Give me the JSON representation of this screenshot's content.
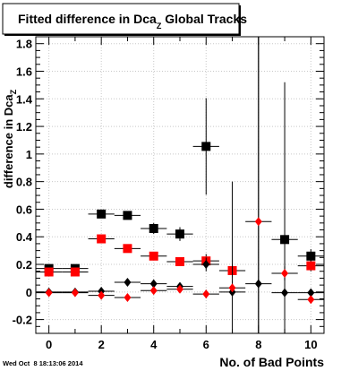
{
  "chart_data": {
    "type": "scatter",
    "title": "Fitted difference in Dca",
    "title_subscript": "Z",
    "title_suffix": " Global Tracks",
    "xlabel": "No. of Bad Points",
    "ylabel": "difference in Dca",
    "ylabel_subscript": "Z",
    "xlim": [
      -0.5,
      10.5
    ],
    "ylim": [
      -0.3,
      1.85
    ],
    "xticks": [
      0,
      2,
      4,
      6,
      8,
      10
    ],
    "yticks": [
      -0.2,
      0,
      0.2,
      0.4,
      0.6,
      0.8,
      1,
      1.2,
      1.4,
      1.6,
      1.8
    ],
    "ytick_labels": [
      "-0.2",
      "0",
      "0.2",
      "0.4",
      "0.6",
      "0.8",
      "1",
      "1.2",
      "1.4",
      "1.6",
      "1.8"
    ],
    "grid": true,
    "series": [
      {
        "marker": "square",
        "color": "#000000",
        "points": [
          {
            "x": 0,
            "y": 0.17,
            "ey": 0.02
          },
          {
            "x": 1,
            "y": 0.17,
            "ey": 0.02
          },
          {
            "x": 2,
            "y": 0.565,
            "ey": 0.03
          },
          {
            "x": 3,
            "y": 0.555,
            "ey": 0.03
          },
          {
            "x": 4,
            "y": 0.46,
            "ey": 0.04
          },
          {
            "x": 5,
            "y": 0.42,
            "ey": 0.05
          },
          {
            "x": 6,
            "y": 1.055,
            "ey": 0.35
          },
          {
            "x": 9,
            "y": 0.38,
            "ey": 1.14
          },
          {
            "x": 10,
            "y": 0.26,
            "ey": 0.05
          }
        ]
      },
      {
        "marker": "square",
        "color": "#ff0000",
        "points": [
          {
            "x": 0,
            "y": 0.145,
            "ey": 0.02
          },
          {
            "x": 1,
            "y": 0.145,
            "ey": 0.02
          },
          {
            "x": 2,
            "y": 0.385,
            "ey": 0.03
          },
          {
            "x": 3,
            "y": 0.315,
            "ey": 0.03
          },
          {
            "x": 4,
            "y": 0.26,
            "ey": 0.03
          },
          {
            "x": 5,
            "y": 0.22,
            "ey": 0.03
          },
          {
            "x": 6,
            "y": 0.225,
            "ey": 0.05
          },
          {
            "x": 7,
            "y": 0.155,
            "ey": 0.05
          },
          {
            "x": 10,
            "y": 0.19,
            "ey": 0.04
          }
        ]
      },
      {
        "marker": "diamond",
        "color": "#000000",
        "points": [
          {
            "x": 0,
            "y": 0.0,
            "ey": 0.01
          },
          {
            "x": 1,
            "y": 0.0,
            "ey": 0.01
          },
          {
            "x": 2,
            "y": 0.005,
            "ey": 0.01
          },
          {
            "x": 3,
            "y": 0.07,
            "ey": 0.02
          },
          {
            "x": 4,
            "y": 0.06,
            "ey": 0.02
          },
          {
            "x": 5,
            "y": 0.04,
            "ey": 0.03
          },
          {
            "x": 6,
            "y": 0.2,
            "ey": 0.05
          },
          {
            "x": 7,
            "y": 0.0,
            "ey": 0.8
          },
          {
            "x": 8,
            "y": 0.06,
            "ey": 2.0
          },
          {
            "x": 9,
            "y": -0.005,
            "ey": 0.02
          },
          {
            "x": 10,
            "y": -0.005,
            "ey": 0.02
          }
        ]
      },
      {
        "marker": "diamond",
        "color": "#ff0000",
        "points": [
          {
            "x": 0,
            "y": -0.005,
            "ey": 0.01
          },
          {
            "x": 1,
            "y": -0.005,
            "ey": 0.01
          },
          {
            "x": 2,
            "y": -0.025,
            "ey": 0.01
          },
          {
            "x": 3,
            "y": -0.04,
            "ey": 0.02
          },
          {
            "x": 4,
            "y": 0.01,
            "ey": 0.02
          },
          {
            "x": 5,
            "y": 0.02,
            "ey": 0.02
          },
          {
            "x": 6,
            "y": -0.015,
            "ey": 0.03
          },
          {
            "x": 7,
            "y": 0.03,
            "ey": 0.05
          },
          {
            "x": 8,
            "y": 0.51,
            "ey": 2.0
          },
          {
            "x": 9,
            "y": 0.135,
            "ey": 0.05
          },
          {
            "x": 10,
            "y": -0.055,
            "ey": 0.02
          }
        ]
      }
    ]
  },
  "footer": {
    "timestamp": "Wed Oct  8 18:13:06 2014"
  }
}
